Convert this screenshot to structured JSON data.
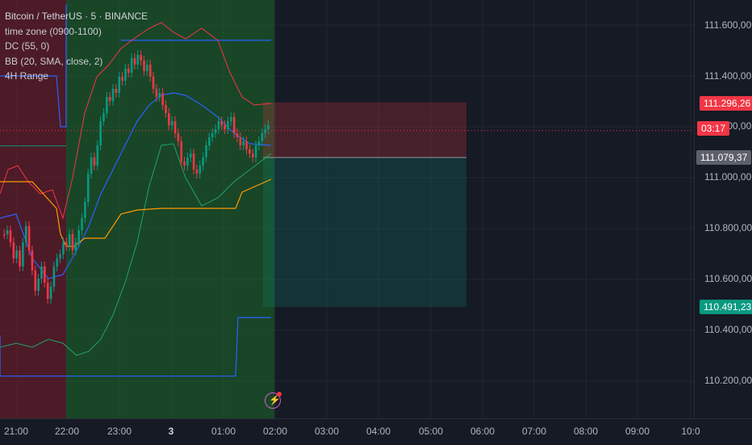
{
  "legend": {
    "symbol": "Bitcoin / TetherUS · 5 · BINANCE",
    "indicator_1": "time zone (0900-1100)",
    "indicator_2": "DC (55, 0)",
    "indicator_3": "BB (20, SMA, close, 2)",
    "indicator_4": "4H Range"
  },
  "price_axis": {
    "ticks": [
      "111.600,00",
      "111.400,00",
      "111.200,00",
      "111.000,00",
      "110.800,00",
      "110.600,00",
      "110.400,00",
      "110.200,00"
    ],
    "price_tick_values": [
      111600,
      111400,
      111200,
      111000,
      110800,
      110600,
      110400,
      110200
    ],
    "badges": {
      "stop_price": "111.296,26",
      "countdown": "03:17",
      "entry_price": "111.079,37",
      "target_price": "110.491,23"
    }
  },
  "time_axis": {
    "ticks": [
      "21:00",
      "22:00",
      "23:00",
      "3",
      "01:00",
      "02:00",
      "03:00",
      "04:00",
      "05:00",
      "06:00",
      "07:00",
      "08:00",
      "09:00",
      "10:0"
    ]
  },
  "colors": {
    "background": "#161a25",
    "up_candle": "#089981",
    "down_candle": "#f23645",
    "bb_upper_lower": "#f23645",
    "bb_basis": "#2962ff",
    "donchian": "#ff9800",
    "range_line": "#2962ff",
    "session_zone": "#1e6b2a",
    "pre_session_zone": "#7a1e2a"
  },
  "chart_data": {
    "type": "candlestick",
    "instrument": "Bitcoin / TetherUS",
    "timeframe": "5",
    "exchange": "BINANCE",
    "price_range": [
      110100,
      111750
    ],
    "time_range": [
      "20:50",
      "10:00"
    ],
    "short_position": {
      "entry": 111079.37,
      "stop": 111296.26,
      "target": 110491.23
    },
    "current_price_line": 111185,
    "four_hour_range": {
      "high": 111540,
      "low": 110220,
      "prior_high": 110450
    }
  }
}
